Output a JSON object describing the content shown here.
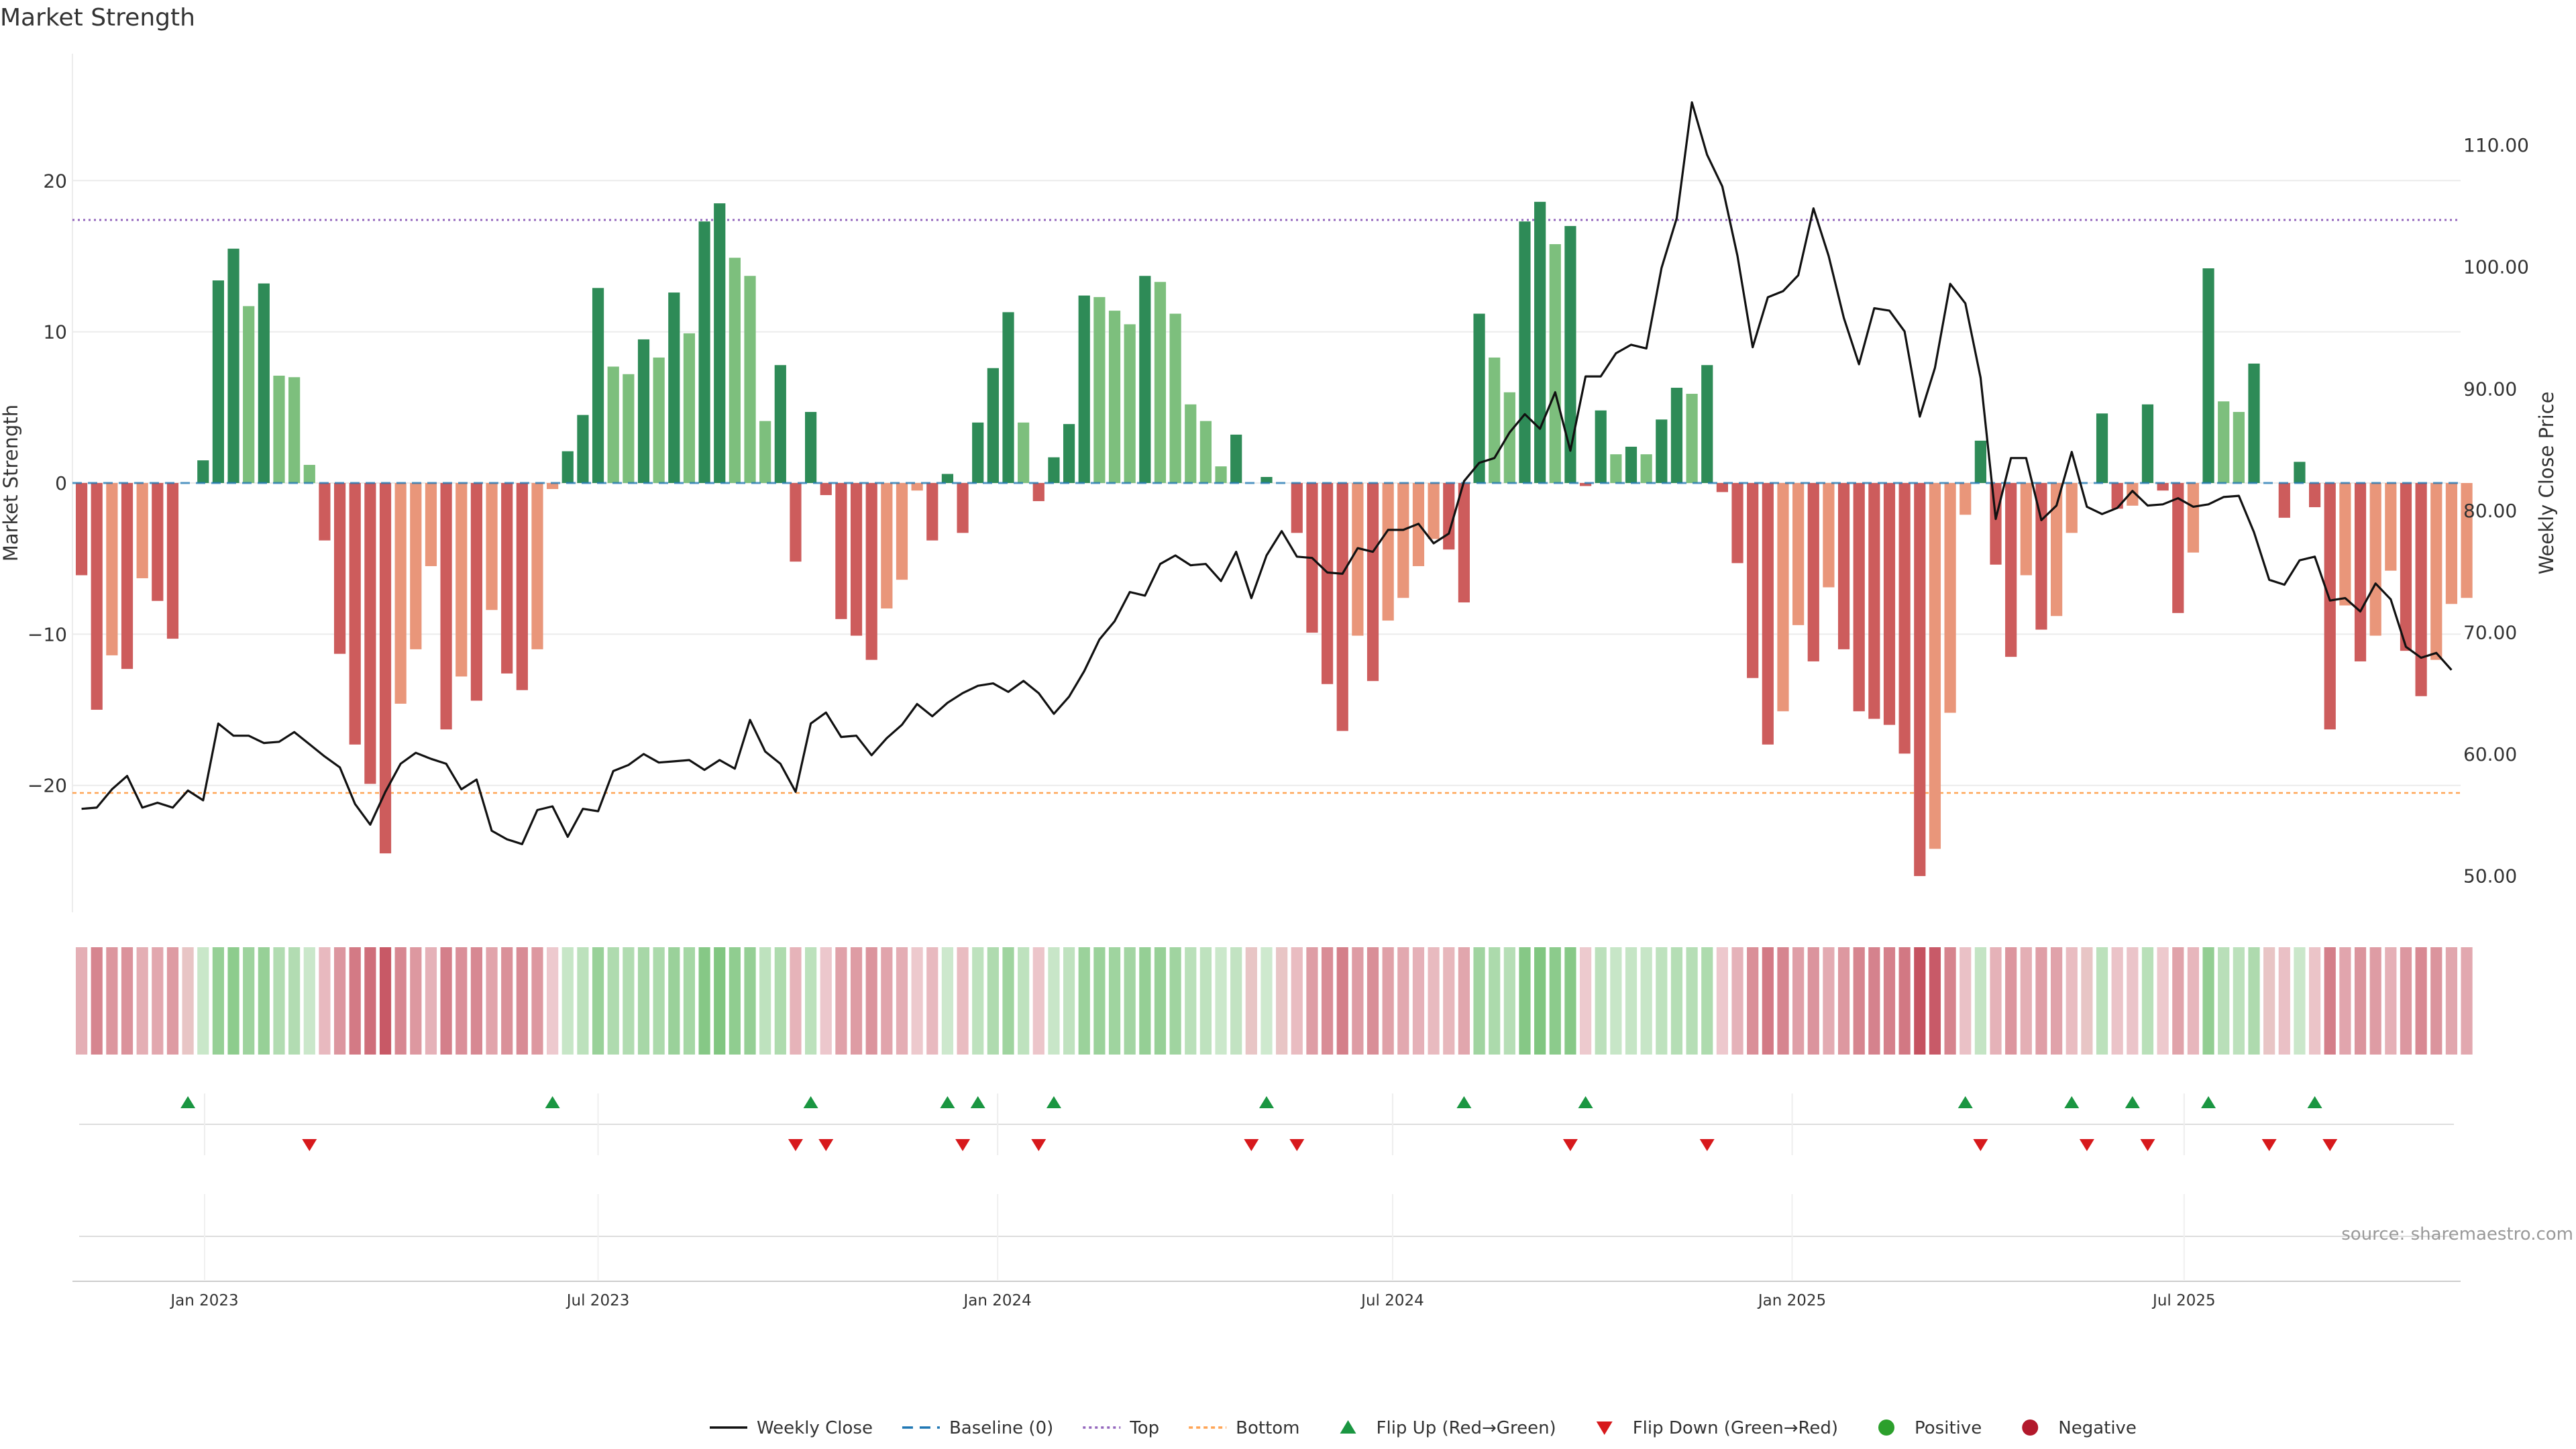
{
  "chart_data": {
    "type": "bar",
    "title": "Market Strength",
    "source": "source: sharemaestro.com",
    "colors": {
      "pos_strong": "#2e8b57",
      "pos_light": "#7dbf7d",
      "neg_strong": "#cd5c5c",
      "neg_light": "#e9967a",
      "close": "#111111",
      "baseline": "#1f77b4",
      "top": "#9467bd",
      "bottom": "#ff7f0e",
      "flip_up": "#1a9641",
      "flip_down": "#d7191c",
      "positive": "#2ca02c",
      "negative": "#b2182b",
      "grid": "#ececec",
      "axis_text": "#333333"
    },
    "left_axis": {
      "label": "Market Strength",
      "ylim": [
        -28.4,
        28.4
      ],
      "ticks": [
        20,
        10,
        0,
        -10,
        -20
      ]
    },
    "right_axis": {
      "label": "Weekly Close Price",
      "ylim": [
        47,
        117.5
      ],
      "ticks": [
        50,
        60,
        70,
        80,
        90,
        100,
        110
      ],
      "tick_labels": [
        "50.00",
        "60.00",
        "70.00",
        "80.00",
        "90.00",
        "100.00",
        "110.00"
      ]
    },
    "reference_lines": {
      "baseline": 0,
      "top": 17.4,
      "bottom": -20.5
    },
    "x_axis": {
      "start": "2022-11-06",
      "range_weeks": [
        -0.6,
        156.6
      ],
      "ticks": [
        {
          "label": "Jan 2023",
          "week": 8.1
        },
        {
          "label": "Jul 2023",
          "week": 34.0
        },
        {
          "label": "Jan 2024",
          "week": 60.3
        },
        {
          "label": "Jul 2024",
          "week": 86.3
        },
        {
          "label": "Jan 2025",
          "week": 112.6
        },
        {
          "label": "Jul 2025",
          "week": 138.4
        }
      ]
    },
    "strength": [
      -6.1,
      -15,
      -11.4,
      -12.3,
      -6.3,
      -7.8,
      -10.3,
      0,
      1.5,
      13.4,
      15.5,
      11.7,
      13.2,
      7.1,
      7,
      1.2,
      -3.8,
      -11.3,
      -17.3,
      -19.9,
      -24.5,
      -14.6,
      -11,
      -5.5,
      -16.3,
      -12.8,
      -14.4,
      -8.4,
      -12.6,
      -13.7,
      -11,
      -0.4,
      2.1,
      4.5,
      12.9,
      7.7,
      7.2,
      9.5,
      8.3,
      12.6,
      9.9,
      17.3,
      18.5,
      14.9,
      13.7,
      4.1,
      7.8,
      -5.2,
      4.7,
      -0.8,
      -9,
      -10.1,
      -11.7,
      -8.3,
      -6.4,
      -0.5,
      -3.8,
      0.6,
      -3.3,
      4,
      7.6,
      11.3,
      4,
      -1.2,
      1.7,
      3.9,
      12.4,
      12.3,
      11.4,
      10.5,
      13.7,
      13.3,
      11.2,
      5.2,
      4.1,
      1.1,
      3.2,
      0,
      0.4,
      0,
      -3.3,
      -9.9,
      -13.3,
      -16.4,
      -10.1,
      -13.1,
      -9.1,
      -7.6,
      -5.5,
      -3.7,
      -4.4,
      -7.9,
      11.2,
      8.3,
      6,
      17.3,
      18.6,
      15.8,
      17,
      -0.2,
      4.8,
      1.9,
      2.4,
      1.9,
      4.2,
      6.3,
      5.9,
      7.8,
      -0.6,
      -5.3,
      -12.9,
      -17.3,
      -15.1,
      -9.4,
      -11.8,
      -6.9,
      -11,
      -15.1,
      -15.6,
      -16,
      -17.9,
      -26,
      -24.2,
      -15.2,
      -2.1,
      2.8,
      -5.4,
      -11.5,
      -6.1,
      -9.7,
      -8.8,
      -3.3,
      0,
      4.6,
      -1.7,
      -1.5,
      5.2,
      -0.5,
      -8.6,
      -4.6,
      14.2,
      5.4,
      4.7,
      7.9,
      0,
      -2.3,
      1.4,
      -1.6,
      -16.3,
      -8.1,
      -11.8,
      -10.1,
      -5.8,
      -11.1,
      -14.1,
      -11.7,
      -8,
      -7.6
    ],
    "weekly_close": [
      55.5,
      55.6,
      57.1,
      58.2,
      55.6,
      56,
      55.6,
      57,
      56.2,
      62.5,
      61.5,
      61.5,
      60.9,
      61,
      61.8,
      60.8,
      59.8,
      58.9,
      55.9,
      54.2,
      56.9,
      59.2,
      60.1,
      59.6,
      59.2,
      57.1,
      57.9,
      53.7,
      53,
      52.6,
      55.4,
      55.7,
      53.2,
      55.5,
      55.3,
      58.6,
      59.1,
      60,
      59.3,
      59.4,
      59.5,
      58.7,
      59.5,
      58.8,
      62.8,
      60.2,
      59.2,
      56.9,
      62.5,
      63.4,
      61.4,
      61.5,
      59.9,
      61.3,
      62.4,
      64.1,
      63.1,
      64.2,
      65,
      65.6,
      65.8,
      65.1,
      66,
      65,
      63.3,
      64.7,
      66.8,
      69.4,
      70.9,
      73.3,
      73,
      75.6,
      76.3,
      75.5,
      75.6,
      74.2,
      76.6,
      72.8,
      76.3,
      78.3,
      76.2,
      76.1,
      74.9,
      74.8,
      76.9,
      76.6,
      78.4,
      78.4,
      78.9,
      77.3,
      78.1,
      82.4,
      83.9,
      84.3,
      86.4,
      87.9,
      86.7,
      89.7,
      84.9,
      91,
      91,
      92.9,
      93.6,
      93.3,
      99.9,
      104,
      113.5,
      109.2,
      106.6,
      100.9,
      93.4,
      97.5,
      98,
      99.3,
      104.8,
      100.9,
      95.8,
      92,
      96.6,
      96.4,
      94.7,
      87.7,
      91.7,
      98.6,
      97,
      90.9,
      79.3,
      84.3,
      84.3,
      79.2,
      80.4,
      84.8,
      80.3,
      79.7,
      80.2,
      81.6,
      80.4,
      80.5,
      81,
      80.3,
      80.5,
      81.1,
      81.2,
      78.2,
      74.3,
      73.9,
      75.9,
      76.2,
      72.6,
      72.8,
      71.7,
      74,
      72.7,
      68.8,
      67.9,
      68.3,
      66.9
    ],
    "flip_up_weeks": [
      7,
      31,
      48,
      57,
      59,
      64,
      78,
      91,
      99,
      124,
      131,
      135,
      140,
      147
    ],
    "flip_down_weeks": [
      15,
      47,
      49,
      58,
      63,
      77,
      80,
      98,
      107,
      125,
      132,
      136,
      144,
      148
    ],
    "legend": [
      {
        "label": "Weekly Close",
        "kind": "line"
      },
      {
        "label": "Baseline (0)",
        "kind": "dash"
      },
      {
        "label": "Top",
        "kind": "dot"
      },
      {
        "label": "Bottom",
        "kind": "dot2"
      },
      {
        "label": "Flip Up (Red→Green)",
        "kind": "tri-up"
      },
      {
        "label": "Flip Down (Green→Red)",
        "kind": "tri-down"
      },
      {
        "label": "Positive",
        "kind": "circle-pos"
      },
      {
        "label": "Negative",
        "kind": "circle-neg"
      }
    ]
  }
}
